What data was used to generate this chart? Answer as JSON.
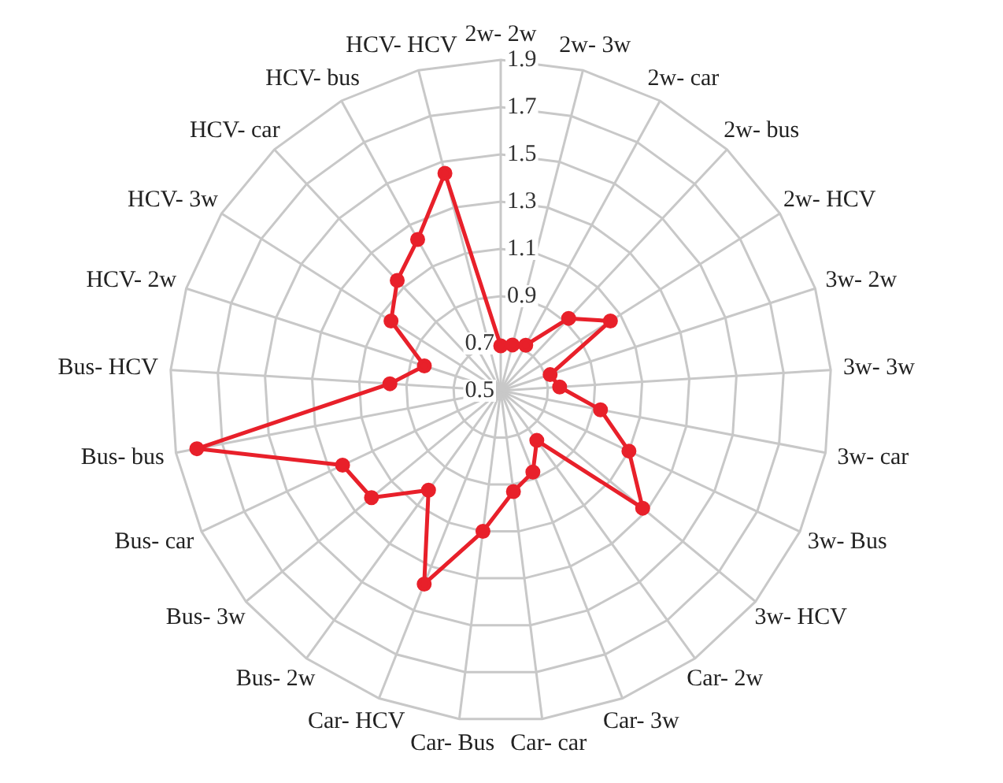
{
  "chart_data": {
    "type": "radar",
    "categories": [
      "2w- 2w",
      "2w- 3w",
      "2w- car",
      "2w- bus",
      "2w- HCV",
      "3w- 2w",
      "3w- 3w",
      "3w- car",
      "3w- Bus",
      "3w- HCV",
      "Car- 2w",
      "Car- 3w",
      "Car- car",
      "Car- Bus",
      "Car- HCV",
      "Bus- 2w",
      "Bus- 3w",
      "Bus- car",
      "Bus- bus",
      "Bus- HCV",
      "HCV- 2w",
      "HCV- 3w",
      "HCV- car",
      "HCV- bus",
      "HCV- HCV"
    ],
    "series": [
      {
        "color": "#e8202a",
        "values": [
          0.69,
          0.7,
          0.72,
          0.92,
          1.05,
          0.72,
          0.75,
          0.93,
          1.1,
          1.28,
          0.76,
          0.87,
          0.93,
          1.1,
          1.38,
          1.02,
          1.21,
          1.24,
          1.81,
          0.97,
          0.84,
          1.05,
          1.14,
          1.23,
          1.45
        ]
      }
    ],
    "ylim": [
      0.5,
      1.9
    ],
    "yticks": [
      0.5,
      0.7,
      0.9,
      1.1,
      1.3,
      1.5,
      1.7,
      1.9
    ],
    "grid": true,
    "legend": false,
    "marker": "circle",
    "line_style": "solid"
  }
}
